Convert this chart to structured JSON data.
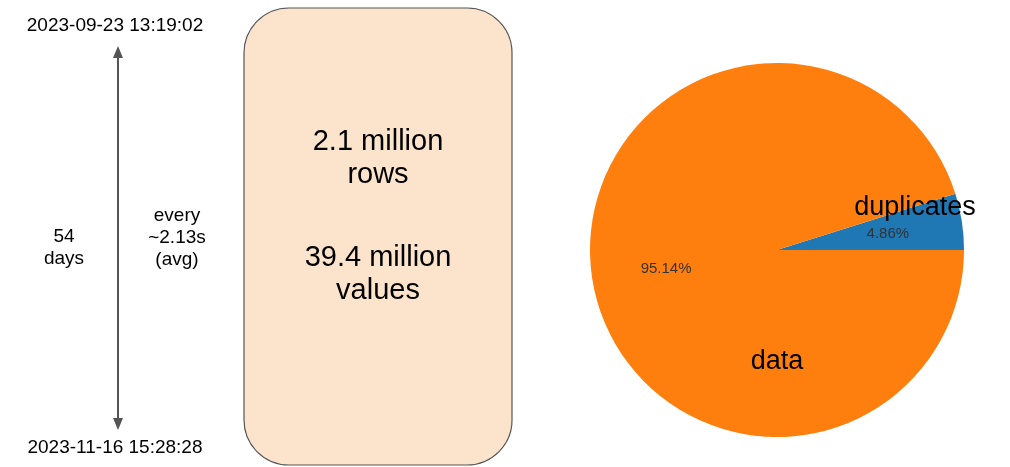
{
  "chart_data": [
    {
      "type": "other",
      "annotations": [
        "2023-09-23 13:19:02",
        "2023-11-16 15:28:28",
        "54 days",
        "every ~2.13s (avg)",
        "2.1 million rows",
        "39.4 million values"
      ]
    },
    {
      "type": "pie",
      "categories": [
        "duplicates",
        "data"
      ],
      "values": [
        4.86,
        95.14
      ],
      "colors": [
        "#1f77b4",
        "#ff7f0e"
      ],
      "value_labels": [
        "4.86%",
        "95.14%"
      ]
    }
  ]
}
